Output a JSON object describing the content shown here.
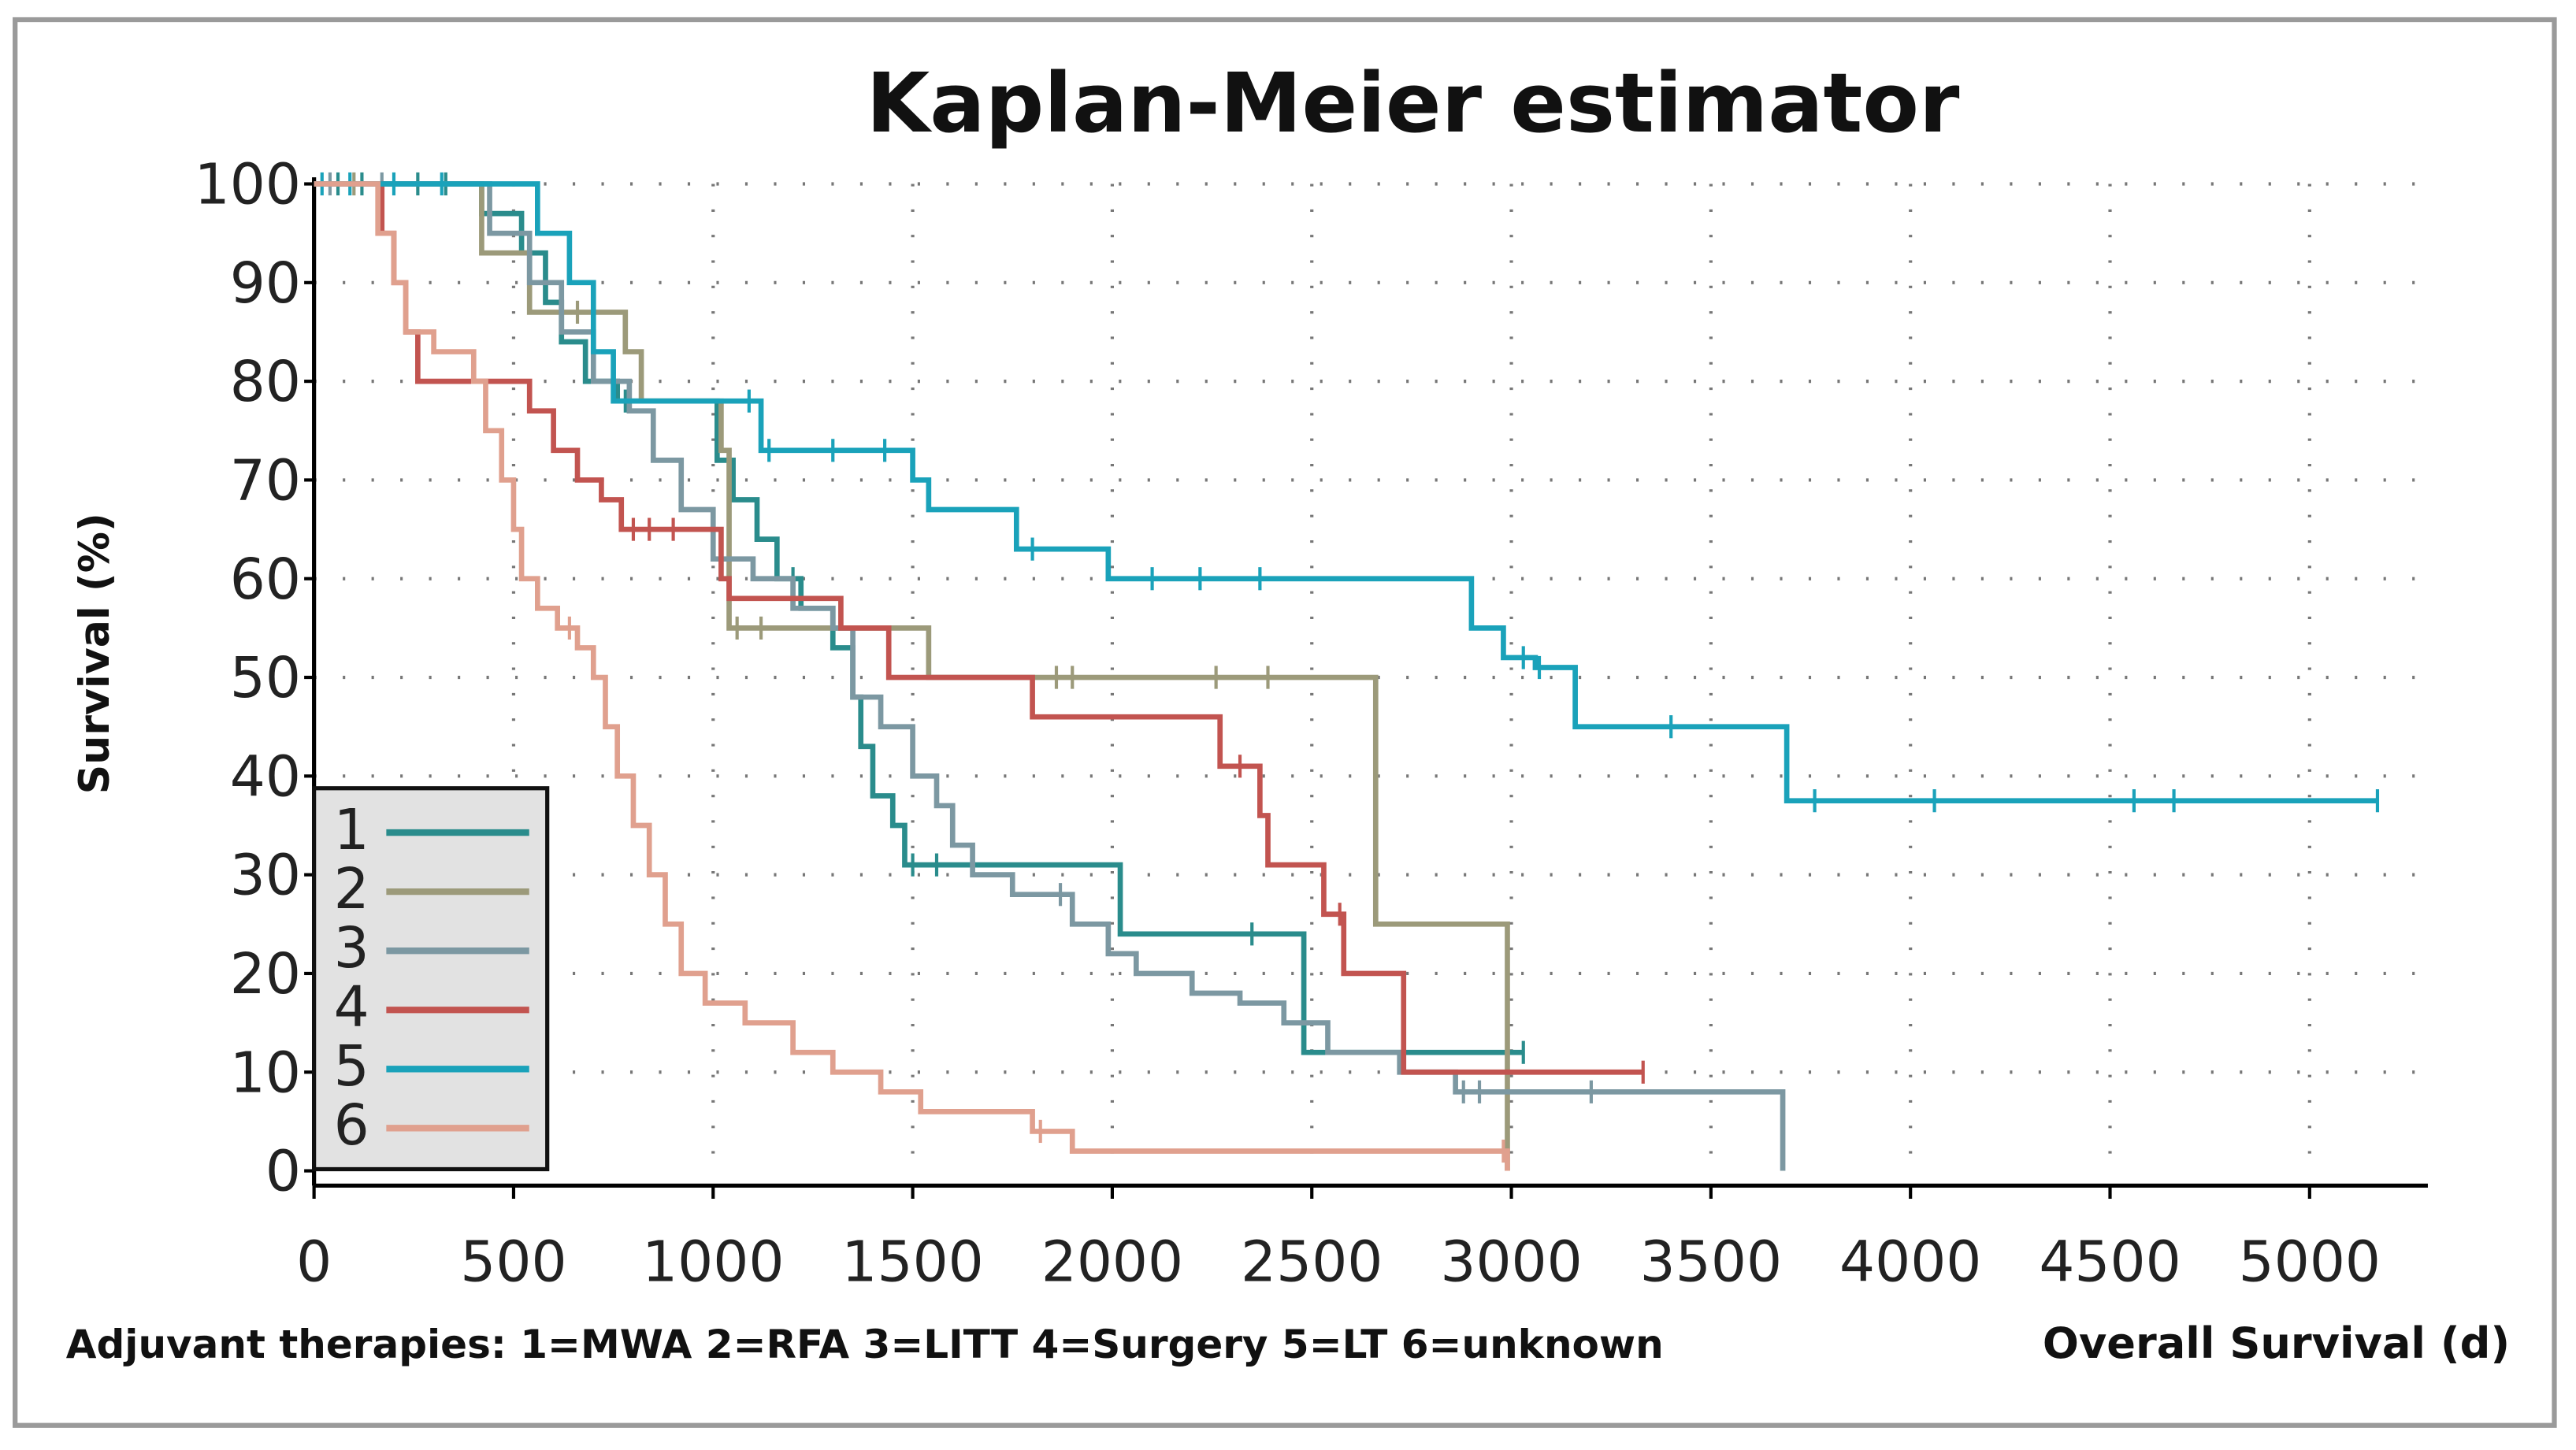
{
  "chart_data": {
    "type": "line",
    "subtype": "kaplan-meier step",
    "title": "Kaplan-Meier estimator",
    "xlabel": "Overall Survival (d)",
    "ylabel": "Survival (%)",
    "footnote": "Adjuvant therapies: 1=MWA 2=RFA 3=LITT 4=Surgery 5=LT 6=unknown",
    "xlim": [
      0,
      5300
    ],
    "ylim": [
      0,
      100
    ],
    "xticks": [
      0,
      500,
      1000,
      1500,
      2000,
      2500,
      3000,
      3500,
      4000,
      4500,
      5000
    ],
    "yticks": [
      0,
      10,
      20,
      30,
      40,
      50,
      60,
      70,
      80,
      90,
      100
    ],
    "grid": true,
    "legend_position": "bottom-left",
    "series": [
      {
        "name": "1",
        "color": "#2a8c8c",
        "steps": [
          [
            0,
            100
          ],
          [
            420,
            97
          ],
          [
            520,
            93
          ],
          [
            580,
            88
          ],
          [
            620,
            84
          ],
          [
            680,
            80
          ],
          [
            760,
            78
          ],
          [
            1010,
            72
          ],
          [
            1050,
            68
          ],
          [
            1110,
            64
          ],
          [
            1160,
            60
          ],
          [
            1220,
            57
          ],
          [
            1300,
            53
          ],
          [
            1350,
            48
          ],
          [
            1370,
            43
          ],
          [
            1400,
            38
          ],
          [
            1450,
            35
          ],
          [
            1480,
            31
          ],
          [
            2020,
            24
          ],
          [
            2480,
            12
          ]
        ],
        "end": 3030,
        "censored": [
          60,
          120,
          260,
          330,
          780,
          1200,
          1500,
          1560,
          2350,
          3030
        ]
      },
      {
        "name": "2",
        "color": "#9c9a7a",
        "steps": [
          [
            0,
            100
          ],
          [
            420,
            93
          ],
          [
            540,
            87
          ],
          [
            780,
            83
          ],
          [
            820,
            78
          ],
          [
            1020,
            73
          ],
          [
            1040,
            55
          ],
          [
            1540,
            50
          ],
          [
            2660,
            25
          ],
          [
            2990,
            0
          ]
        ],
        "end": 2990,
        "censored": [
          100,
          660,
          1060,
          1120,
          1860,
          1900,
          2260,
          2390
        ]
      },
      {
        "name": "3",
        "color": "#7c98a2",
        "steps": [
          [
            0,
            100
          ],
          [
            440,
            95
          ],
          [
            540,
            90
          ],
          [
            620,
            85
          ],
          [
            700,
            80
          ],
          [
            790,
            77
          ],
          [
            850,
            72
          ],
          [
            920,
            67
          ],
          [
            1000,
            62
          ],
          [
            1100,
            60
          ],
          [
            1200,
            57
          ],
          [
            1300,
            55
          ],
          [
            1350,
            48
          ],
          [
            1420,
            45
          ],
          [
            1500,
            40
          ],
          [
            1560,
            37
          ],
          [
            1600,
            33
          ],
          [
            1650,
            30
          ],
          [
            1750,
            28
          ],
          [
            1900,
            25
          ],
          [
            1990,
            22
          ],
          [
            2060,
            20
          ],
          [
            2200,
            18
          ],
          [
            2320,
            17
          ],
          [
            2430,
            15
          ],
          [
            2540,
            12
          ],
          [
            2720,
            10
          ],
          [
            2860,
            8
          ],
          [
            3680,
            0
          ]
        ],
        "end": 3680,
        "censored": [
          40,
          170,
          1870,
          2880,
          2920,
          3200
        ]
      },
      {
        "name": "4",
        "color": "#c25450",
        "steps": [
          [
            0,
            100
          ],
          [
            170,
            95
          ],
          [
            200,
            90
          ],
          [
            230,
            85
          ],
          [
            260,
            80
          ],
          [
            540,
            77
          ],
          [
            600,
            73
          ],
          [
            660,
            70
          ],
          [
            720,
            68
          ],
          [
            770,
            65
          ],
          [
            1020,
            60
          ],
          [
            1040,
            58
          ],
          [
            1320,
            55
          ],
          [
            1440,
            50
          ],
          [
            1800,
            46
          ],
          [
            2270,
            41
          ],
          [
            2370,
            36
          ],
          [
            2390,
            31
          ],
          [
            2530,
            26
          ],
          [
            2580,
            20
          ],
          [
            2730,
            10
          ]
        ],
        "end": 3330,
        "censored": [
          800,
          840,
          900,
          2320,
          2570,
          3330
        ]
      },
      {
        "name": "5",
        "color": "#1aa2ba",
        "steps": [
          [
            0,
            100
          ],
          [
            560,
            95
          ],
          [
            640,
            90
          ],
          [
            700,
            83
          ],
          [
            750,
            78
          ],
          [
            1120,
            73
          ],
          [
            1500,
            70
          ],
          [
            1540,
            67
          ],
          [
            1760,
            63
          ],
          [
            1990,
            60
          ],
          [
            2900,
            55
          ],
          [
            2980,
            52
          ],
          [
            3060,
            51
          ],
          [
            3160,
            45
          ],
          [
            3690,
            37.5
          ]
        ],
        "end": 5170,
        "censored": [
          20,
          90,
          200,
          320,
          1090,
          1140,
          1300,
          1430,
          1800,
          2100,
          2220,
          2370,
          3030,
          3070,
          3400,
          3760,
          4060,
          4560,
          4660,
          5170
        ]
      },
      {
        "name": "6",
        "color": "#e0a08e",
        "steps": [
          [
            0,
            100
          ],
          [
            160,
            95
          ],
          [
            200,
            90
          ],
          [
            230,
            85
          ],
          [
            300,
            83
          ],
          [
            400,
            80
          ],
          [
            430,
            75
          ],
          [
            470,
            70
          ],
          [
            500,
            65
          ],
          [
            520,
            60
          ],
          [
            560,
            57
          ],
          [
            610,
            55
          ],
          [
            660,
            53
          ],
          [
            700,
            50
          ],
          [
            730,
            45
          ],
          [
            760,
            40
          ],
          [
            800,
            35
          ],
          [
            840,
            30
          ],
          [
            880,
            25
          ],
          [
            920,
            20
          ],
          [
            980,
            17
          ],
          [
            1080,
            15
          ],
          [
            1200,
            12
          ],
          [
            1300,
            10
          ],
          [
            1420,
            8
          ],
          [
            1520,
            6
          ],
          [
            1800,
            4
          ],
          [
            1900,
            2
          ],
          [
            2990,
            0
          ]
        ],
        "end": 2990,
        "censored": [
          640,
          1820,
          2980
        ]
      }
    ]
  }
}
